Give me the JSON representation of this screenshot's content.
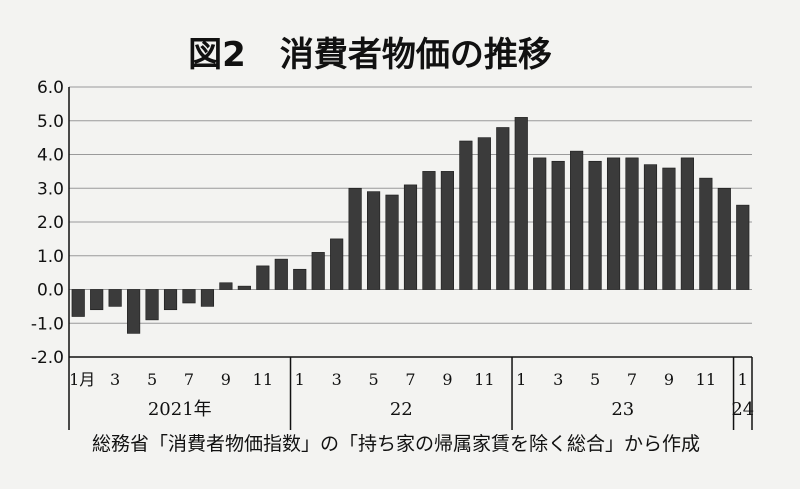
{
  "chart_data": {
    "type": "bar",
    "title": "図2　消費者物価の推移",
    "source": "総務省「消費者物価指数」の「持ち家の帰属家賃を除く総合」から作成",
    "ylim": [
      -2.0,
      6.0
    ],
    "yticks": [
      "6.0",
      "5.0",
      "4.0",
      "3.0",
      "2.0",
      "1.0",
      "0.0",
      "-1.0",
      "-2.0"
    ],
    "ytick_values": [
      6,
      5,
      4,
      3,
      2,
      1,
      0,
      -1,
      -2
    ],
    "grid": true,
    "x_tick_labels": [
      "1月",
      "3",
      "5",
      "7",
      "9",
      "11",
      "1",
      "3",
      "5",
      "7",
      "9",
      "11",
      "1",
      "3",
      "5",
      "7",
      "9",
      "11",
      "1"
    ],
    "x_tick_index": [
      0,
      2,
      4,
      6,
      8,
      10,
      12,
      14,
      16,
      18,
      20,
      22,
      24,
      26,
      28,
      30,
      32,
      34,
      36
    ],
    "years": [
      {
        "label": "2021年",
        "start": 0,
        "end": 12
      },
      {
        "label": "22",
        "start": 12,
        "end": 24
      },
      {
        "label": "23",
        "start": 24,
        "end": 36
      },
      {
        "label": "24",
        "start": 36,
        "end": 37
      }
    ],
    "values": [
      -0.8,
      -0.6,
      -0.5,
      -1.3,
      -0.9,
      -0.6,
      -0.4,
      -0.5,
      0.2,
      0.1,
      0.7,
      0.9,
      0.6,
      1.1,
      1.5,
      3.0,
      2.9,
      2.8,
      3.1,
      3.5,
      3.5,
      4.4,
      4.5,
      4.8,
      5.1,
      3.9,
      3.8,
      4.1,
      3.8,
      3.9,
      3.9,
      3.7,
      3.6,
      3.9,
      3.3,
      3.0,
      2.5
    ]
  }
}
